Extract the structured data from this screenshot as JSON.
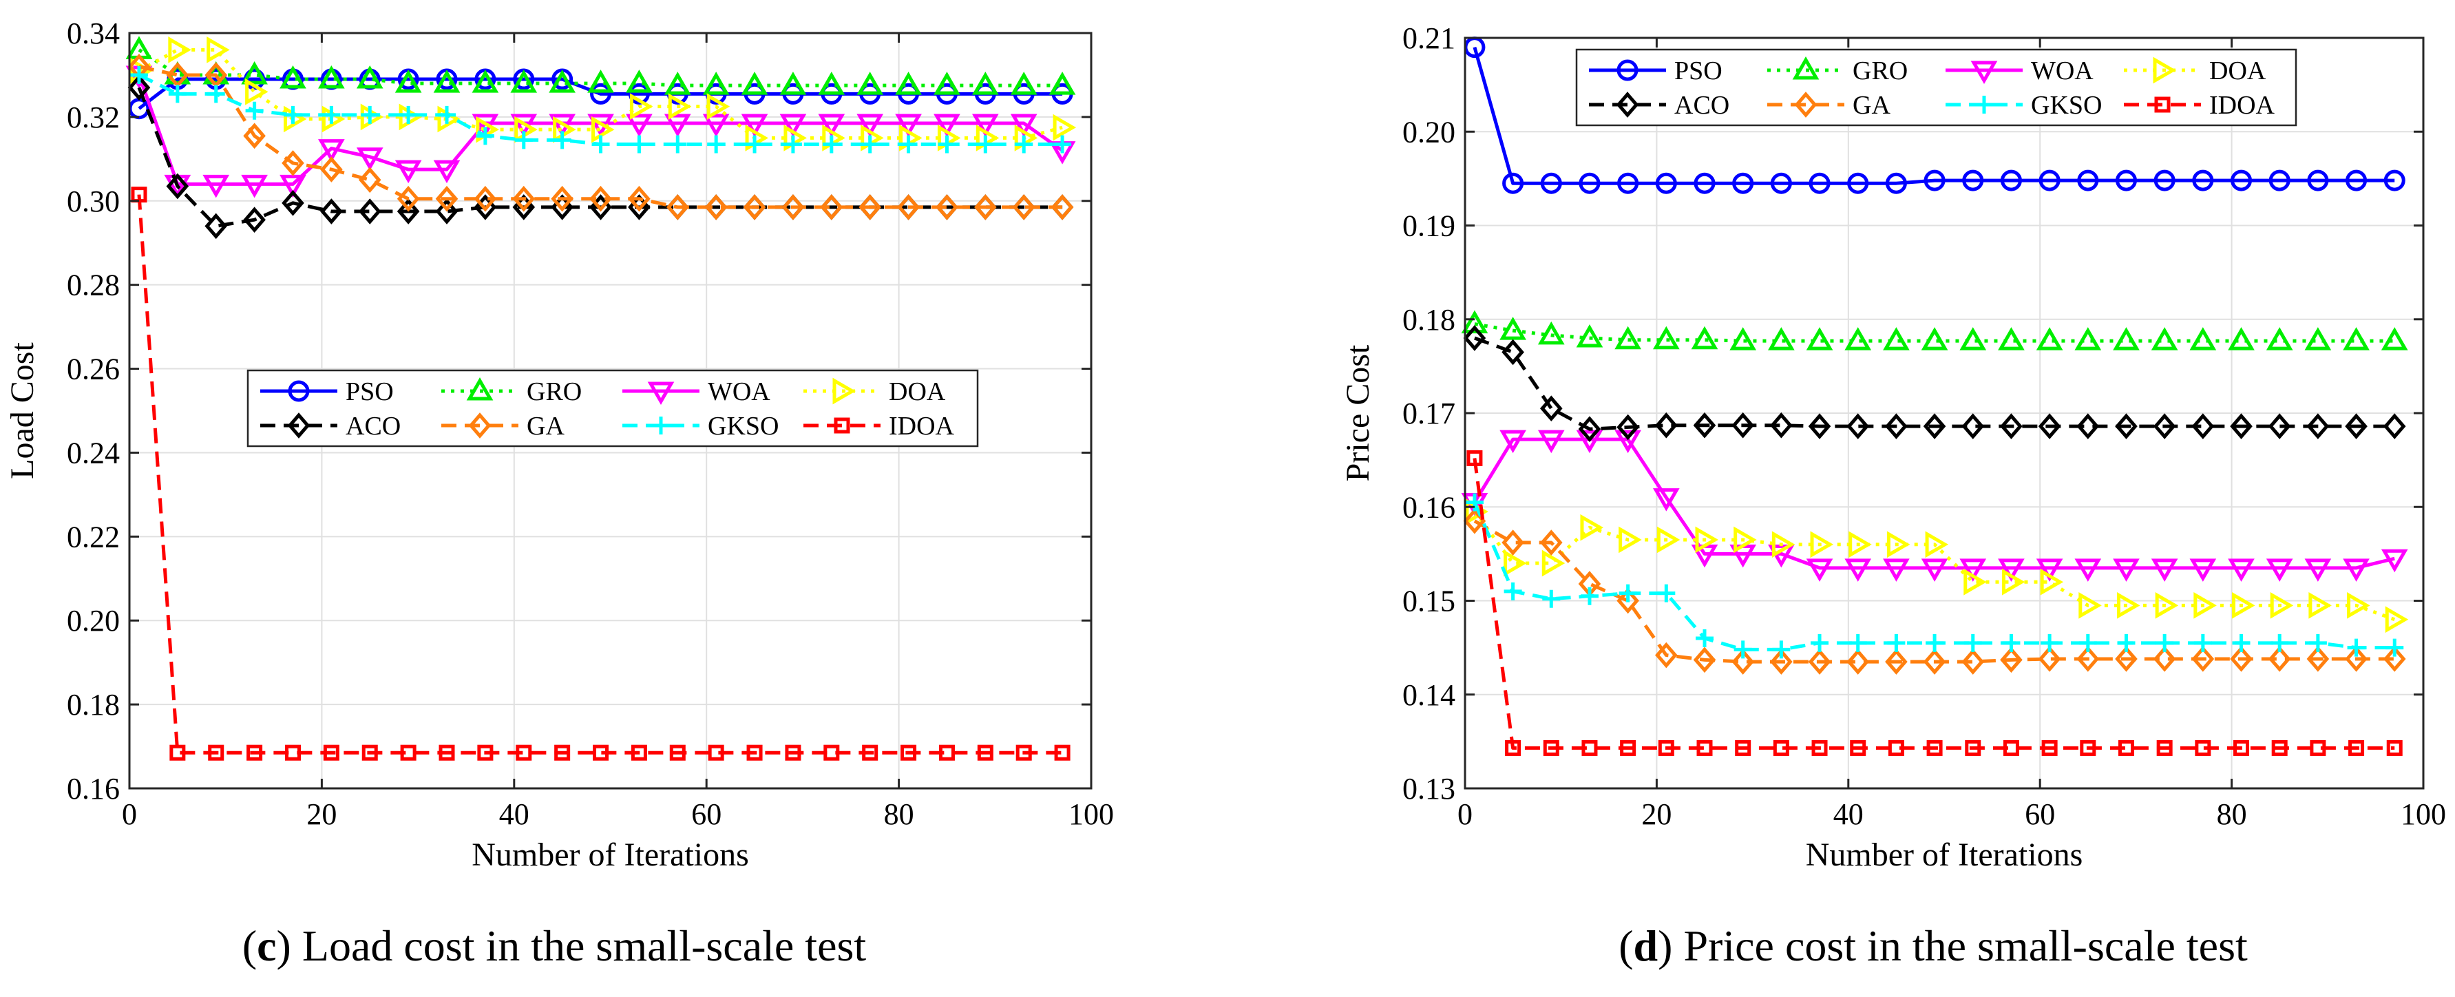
{
  "style": {
    "series_colors": {
      "PSO": "#0000ff",
      "GRO": "#00ee00",
      "WOA": "#ff00ff",
      "DOA": "#ffff00",
      "ACO": "#000000",
      "GA": "#ff7f0e",
      "GKSO": "#00ffff",
      "IDOA": "#ff0000"
    },
    "series_markers": {
      "PSO": "circle",
      "GRO": "triangle-up",
      "WOA": "triangle-down",
      "DOA": "triangle-right",
      "ACO": "diamond",
      "GA": "diamond",
      "GKSO": "plus",
      "IDOA": "square"
    },
    "series_dash": {
      "PSO": "solid",
      "GRO": "dotted",
      "WOA": "solid",
      "DOA": "dotted",
      "ACO": "dashed",
      "GA": "dashed",
      "GKSO": "dashed",
      "IDOA": "dashed"
    },
    "grid_color": "#e0e0e0"
  },
  "captions": [
    {
      "letter": "c",
      "paren_open": "(",
      "paren_close": ")",
      "text": " Load cost in the small-scale test"
    },
    {
      "letter": "d",
      "paren_open": "(",
      "paren_close": ")",
      "text": " Price cost in the small-scale test"
    }
  ],
  "chart_data": [
    {
      "type": "line",
      "title": "",
      "xlabel": "Number of Iterations",
      "ylabel": "Load Cost",
      "xlim": [
        0,
        100
      ],
      "ylim": [
        0.16,
        0.34
      ],
      "xticks": [
        0,
        20,
        40,
        60,
        80,
        100
      ],
      "xtick_labels": [
        "0",
        "20",
        "40",
        "60",
        "80",
        "100"
      ],
      "yticks": [
        0.16,
        0.18,
        0.2,
        0.22,
        0.24,
        0.26,
        0.28,
        0.3,
        0.32,
        0.34
      ],
      "ytick_labels": [
        "0.16",
        "0.18",
        "0.20",
        "0.22",
        "0.24",
        "0.26",
        "0.28",
        "0.30",
        "0.32",
        "0.34"
      ],
      "grid": true,
      "legend_position": "center",
      "legend_order": [
        "PSO",
        "GRO",
        "WOA",
        "DOA",
        "ACO",
        "GA",
        "GKSO",
        "IDOA"
      ],
      "x": [
        1,
        5,
        9,
        13,
        17,
        21,
        25,
        29,
        33,
        37,
        41,
        45,
        49,
        53,
        57,
        61,
        65,
        69,
        73,
        77,
        81,
        85,
        89,
        93,
        97
      ],
      "series": [
        {
          "name": "PSO",
          "values": [
            0.322,
            0.329,
            0.329,
            0.329,
            0.329,
            0.329,
            0.329,
            0.329,
            0.329,
            0.329,
            0.329,
            0.329,
            0.3255,
            0.3255,
            0.3255,
            0.3255,
            0.3255,
            0.3255,
            0.3255,
            0.3255,
            0.3255,
            0.3255,
            0.3255,
            0.3255,
            0.3255
          ]
        },
        {
          "name": "GRO",
          "values": [
            0.336,
            0.33,
            0.33,
            0.33,
            0.329,
            0.329,
            0.329,
            0.328,
            0.328,
            0.328,
            0.328,
            0.328,
            0.328,
            0.328,
            0.3275,
            0.3275,
            0.3275,
            0.3275,
            0.3275,
            0.3275,
            0.3275,
            0.3275,
            0.3275,
            0.3275,
            0.3275
          ]
        },
        {
          "name": "WOA",
          "values": [
            0.33,
            0.304,
            0.304,
            0.304,
            0.304,
            0.3125,
            0.3105,
            0.3075,
            0.3075,
            0.3185,
            0.3185,
            0.3185,
            0.3185,
            0.3185,
            0.3185,
            0.3185,
            0.3185,
            0.3185,
            0.3185,
            0.3185,
            0.3185,
            0.3185,
            0.3185,
            0.3185,
            0.312
          ]
        },
        {
          "name": "DOA",
          "values": [
            0.331,
            0.336,
            0.336,
            0.326,
            0.3195,
            0.3195,
            0.32,
            0.32,
            0.3195,
            0.317,
            0.317,
            0.317,
            0.317,
            0.3225,
            0.3225,
            0.3225,
            0.315,
            0.315,
            0.315,
            0.315,
            0.315,
            0.315,
            0.315,
            0.315,
            0.3175
          ]
        },
        {
          "name": "ACO",
          "values": [
            0.327,
            0.3035,
            0.294,
            0.2955,
            0.2995,
            0.2975,
            0.2975,
            0.2975,
            0.2975,
            0.2985,
            0.2985,
            0.2985,
            0.2985,
            0.2985,
            0.2985,
            0.2985,
            0.2985,
            0.2985,
            0.2985,
            0.2985,
            0.2985,
            0.2985,
            0.2985,
            0.2985,
            0.2985
          ]
        },
        {
          "name": "GA",
          "values": [
            0.332,
            0.33,
            0.33,
            0.3155,
            0.309,
            0.3075,
            0.305,
            0.3005,
            0.3005,
            0.3005,
            0.3005,
            0.3005,
            0.3005,
            0.3005,
            0.2985,
            0.2985,
            0.2985,
            0.2985,
            0.2985,
            0.2985,
            0.2985,
            0.2985,
            0.2985,
            0.2985,
            0.2985
          ]
        },
        {
          "name": "GKSO",
          "values": [
            0.33,
            0.3255,
            0.3255,
            0.3215,
            0.3205,
            0.3205,
            0.3205,
            0.3205,
            0.3205,
            0.3155,
            0.3145,
            0.3145,
            0.3135,
            0.3135,
            0.3135,
            0.3135,
            0.3135,
            0.3135,
            0.3135,
            0.3135,
            0.3135,
            0.3135,
            0.3135,
            0.3135,
            0.3135
          ]
        },
        {
          "name": "IDOA",
          "values": [
            0.3015,
            0.1685,
            0.1685,
            0.1685,
            0.1685,
            0.1685,
            0.1685,
            0.1685,
            0.1685,
            0.1685,
            0.1685,
            0.1685,
            0.1685,
            0.1685,
            0.1685,
            0.1685,
            0.1685,
            0.1685,
            0.1685,
            0.1685,
            0.1685,
            0.1685,
            0.1685,
            0.1685,
            0.1685
          ]
        }
      ]
    },
    {
      "type": "line",
      "title": "",
      "xlabel": "Number of Iterations",
      "ylabel": "Price Cost",
      "xlim": [
        0,
        100
      ],
      "ylim": [
        0.13,
        0.21
      ],
      "xticks": [
        0,
        20,
        40,
        60,
        80,
        100
      ],
      "xtick_labels": [
        "0",
        "20",
        "40",
        "60",
        "80",
        "100"
      ],
      "yticks": [
        0.13,
        0.14,
        0.15,
        0.16,
        0.17,
        0.18,
        0.19,
        0.2,
        0.21
      ],
      "ytick_labels": [
        "0.13",
        "0.14",
        "0.15",
        "0.16",
        "0.17",
        "0.18",
        "0.19",
        "0.20",
        "0.21"
      ],
      "grid": true,
      "legend_position": "top",
      "legend_order": [
        "PSO",
        "GRO",
        "WOA",
        "DOA",
        "ACO",
        "GA",
        "GKSO",
        "IDOA"
      ],
      "x": [
        1,
        5,
        9,
        13,
        17,
        21,
        25,
        29,
        33,
        37,
        41,
        45,
        49,
        53,
        57,
        61,
        65,
        69,
        73,
        77,
        81,
        85,
        89,
        93,
        97
      ],
      "series": [
        {
          "name": "PSO",
          "values": [
            0.209,
            0.1945,
            0.1945,
            0.1945,
            0.1945,
            0.1945,
            0.1945,
            0.1945,
            0.1945,
            0.1945,
            0.1945,
            0.1945,
            0.1948,
            0.1948,
            0.1948,
            0.1948,
            0.1948,
            0.1948,
            0.1948,
            0.1948,
            0.1948,
            0.1948,
            0.1948,
            0.1948,
            0.1948
          ]
        },
        {
          "name": "GRO",
          "values": [
            0.1795,
            0.1788,
            0.1783,
            0.178,
            0.1778,
            0.1778,
            0.1778,
            0.1777,
            0.1777,
            0.1777,
            0.1777,
            0.1777,
            0.1777,
            0.1777,
            0.1777,
            0.1777,
            0.1777,
            0.1777,
            0.1777,
            0.1777,
            0.1777,
            0.1777,
            0.1777,
            0.1777,
            0.1777
          ]
        },
        {
          "name": "WOA",
          "values": [
            0.1605,
            0.1672,
            0.1672,
            0.1672,
            0.1672,
            0.161,
            0.155,
            0.155,
            0.155,
            0.1535,
            0.1535,
            0.1535,
            0.1535,
            0.1535,
            0.1535,
            0.1535,
            0.1535,
            0.1535,
            0.1535,
            0.1535,
            0.1535,
            0.1535,
            0.1535,
            0.1535,
            0.1545
          ]
        },
        {
          "name": "DOA",
          "values": [
            0.1595,
            0.154,
            0.154,
            0.1578,
            0.1565,
            0.1565,
            0.1565,
            0.1565,
            0.156,
            0.156,
            0.156,
            0.156,
            0.156,
            0.152,
            0.152,
            0.152,
            0.1495,
            0.1495,
            0.1495,
            0.1495,
            0.1495,
            0.1495,
            0.1495,
            0.1495,
            0.148
          ]
        },
        {
          "name": "ACO",
          "values": [
            0.178,
            0.1765,
            0.1705,
            0.1683,
            0.1685,
            0.1687,
            0.1687,
            0.1687,
            0.1687,
            0.1686,
            0.1686,
            0.1686,
            0.1686,
            0.1686,
            0.1686,
            0.1686,
            0.1686,
            0.1686,
            0.1686,
            0.1686,
            0.1686,
            0.1686,
            0.1686,
            0.1686,
            0.1686
          ]
        },
        {
          "name": "GA",
          "values": [
            0.1585,
            0.1562,
            0.1562,
            0.1518,
            0.15,
            0.1442,
            0.1437,
            0.1435,
            0.1435,
            0.1435,
            0.1435,
            0.1435,
            0.1435,
            0.1435,
            0.1437,
            0.1438,
            0.1438,
            0.1438,
            0.1438,
            0.1438,
            0.1438,
            0.1438,
            0.1438,
            0.1438,
            0.1438
          ]
        },
        {
          "name": "GKSO",
          "values": [
            0.1605,
            0.151,
            0.1502,
            0.1505,
            0.1508,
            0.1508,
            0.146,
            0.1448,
            0.1448,
            0.1455,
            0.1455,
            0.1455,
            0.1455,
            0.1455,
            0.1455,
            0.1455,
            0.1455,
            0.1455,
            0.1455,
            0.1455,
            0.1455,
            0.1455,
            0.1455,
            0.145,
            0.145
          ]
        },
        {
          "name": "IDOA",
          "values": [
            0.1652,
            0.1343,
            0.1343,
            0.1343,
            0.1343,
            0.1343,
            0.1343,
            0.1343,
            0.1343,
            0.1343,
            0.1343,
            0.1343,
            0.1343,
            0.1343,
            0.1343,
            0.1343,
            0.1343,
            0.1343,
            0.1343,
            0.1343,
            0.1343,
            0.1343,
            0.1343,
            0.1343,
            0.1343
          ]
        }
      ]
    }
  ]
}
